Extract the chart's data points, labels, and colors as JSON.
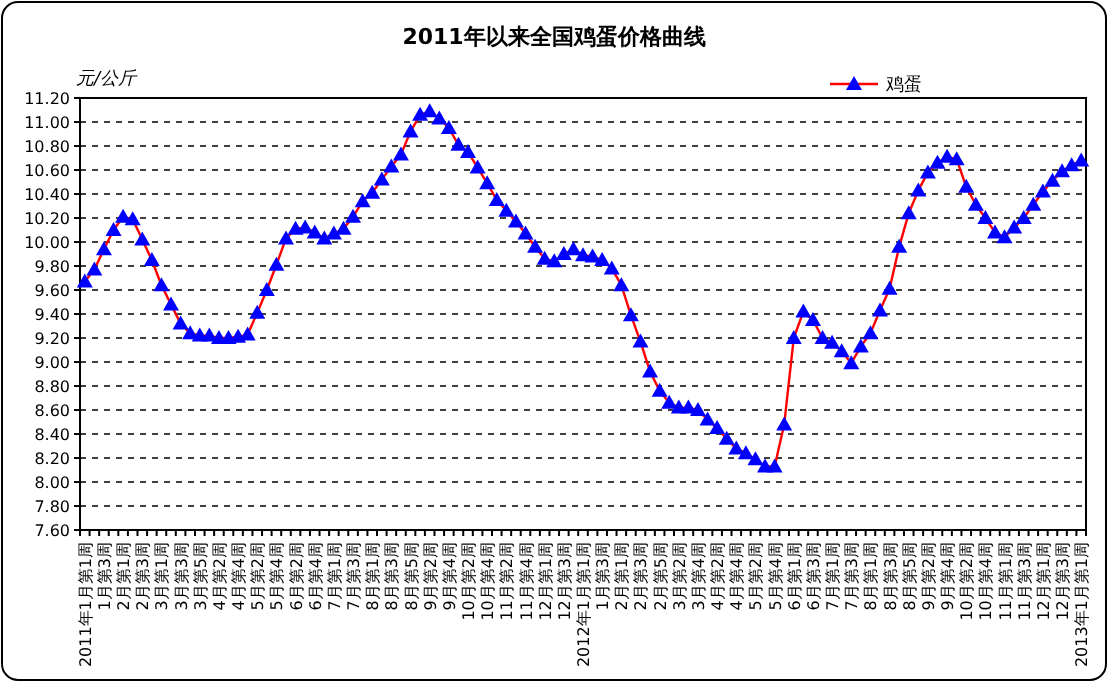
{
  "chart_data": {
    "type": "line",
    "title": "2011年以来全国鸡蛋价格曲线",
    "ylabel": "元/公斤",
    "categories": [
      "2011年1月第1周",
      null,
      "1月第3周",
      null,
      "2月第1周",
      null,
      "2月第3周",
      null,
      "3月第1周",
      null,
      "3月第3周",
      null,
      "3月第5周",
      null,
      "4月第2周",
      null,
      "4月第4周",
      null,
      "5月第2周",
      null,
      "5月第4周",
      null,
      "6月第2周",
      null,
      "6月第4周",
      null,
      "7月第1周",
      null,
      "7月第3周",
      null,
      "8月第1周",
      null,
      "8月第3周",
      null,
      "8月第5周",
      null,
      "9月第2周",
      null,
      "9月第4周",
      null,
      "10月第2周",
      null,
      "10月第4周",
      null,
      "11月第2周",
      null,
      "11月第4周",
      null,
      "12月第1周",
      null,
      "12月第3周",
      null,
      "2012年1月第1周",
      null,
      "1月第3周",
      null,
      "2月第1周",
      null,
      "2月第3周",
      null,
      "2月第5周",
      null,
      "3月第2周",
      null,
      "3月第4周",
      null,
      "4月第2周",
      null,
      "4月第4周",
      null,
      "5月第2周",
      null,
      "5月第4周",
      null,
      "6月第1周",
      null,
      "6月第3周",
      null,
      "7月第1周",
      null,
      "7月第3周",
      null,
      "8月第1周",
      null,
      "8月第3周",
      null,
      "8月第5周",
      null,
      "9月第2周",
      null,
      "9月第4周",
      null,
      "10月第2周",
      null,
      "10月第4周",
      null,
      "11月第1周",
      null,
      "11月第3周",
      null,
      "12月第1周",
      null,
      "12月第3周",
      null,
      "2013年1月第1周"
    ],
    "series": [
      {
        "name": "鸡蛋",
        "color": "#0000ff",
        "values": [
          9.67,
          9.77,
          9.94,
          10.1,
          10.21,
          10.19,
          10.02,
          9.85,
          9.64,
          9.48,
          9.32,
          9.24,
          9.22,
          9.22,
          9.2,
          9.2,
          9.21,
          9.23,
          9.41,
          9.6,
          9.81,
          10.03,
          10.11,
          10.12,
          10.08,
          10.03,
          10.07,
          10.11,
          10.21,
          10.34,
          10.41,
          10.52,
          10.63,
          10.73,
          10.92,
          11.06,
          11.09,
          11.03,
          10.95,
          10.81,
          10.75,
          10.62,
          10.49,
          10.35,
          10.26,
          10.17,
          10.07,
          9.96,
          9.86,
          9.84,
          9.9,
          9.94,
          9.89,
          9.88,
          9.85,
          9.78,
          9.64,
          9.39,
          9.17,
          8.92,
          8.76,
          8.66,
          8.62,
          8.62,
          8.6,
          8.52,
          8.45,
          8.36,
          8.28,
          8.24,
          8.19,
          8.13,
          8.13,
          8.48,
          9.2,
          9.42,
          9.35,
          9.2,
          9.16,
          9.09,
          8.99,
          9.13,
          9.24,
          9.43,
          9.61,
          9.96,
          10.24,
          10.43,
          10.58,
          10.66,
          10.71,
          10.69,
          10.46,
          10.31,
          10.2,
          10.08,
          10.04,
          10.12,
          10.2,
          10.31,
          10.42,
          10.51,
          10.59,
          10.64,
          10.68
        ]
      }
    ],
    "ylim": [
      7.6,
      11.2
    ],
    "yticks": [
      {
        "value": 7.6,
        "label": "7.60"
      },
      {
        "value": 7.8,
        "label": "7.80"
      },
      {
        "value": 8.0,
        "label": "8.00"
      },
      {
        "value": 8.2,
        "label": "8.20"
      },
      {
        "value": 8.4,
        "label": "8.40"
      },
      {
        "value": 8.6,
        "label": "8.60"
      },
      {
        "value": 8.8,
        "label": "8.80"
      },
      {
        "value": 9.0,
        "label": "9.00"
      },
      {
        "value": 9.2,
        "label": "9.20"
      },
      {
        "value": 9.4,
        "label": "9.40"
      },
      {
        "value": 9.6,
        "label": "9.60"
      },
      {
        "value": 9.8,
        "label": "9.80"
      },
      {
        "value": 10.0,
        "label": "10.00"
      },
      {
        "value": 10.2,
        "label": "10.20"
      },
      {
        "value": 10.4,
        "label": "10.40"
      },
      {
        "value": 10.6,
        "label": "10.60"
      },
      {
        "value": 10.8,
        "label": "10.80"
      },
      {
        "value": 11.0,
        "label": "11.00"
      },
      {
        "value": 11.2,
        "label": "11.20"
      }
    ],
    "grid": "y",
    "legend": "top right",
    "marker": "triangle",
    "line_style": "solid"
  }
}
